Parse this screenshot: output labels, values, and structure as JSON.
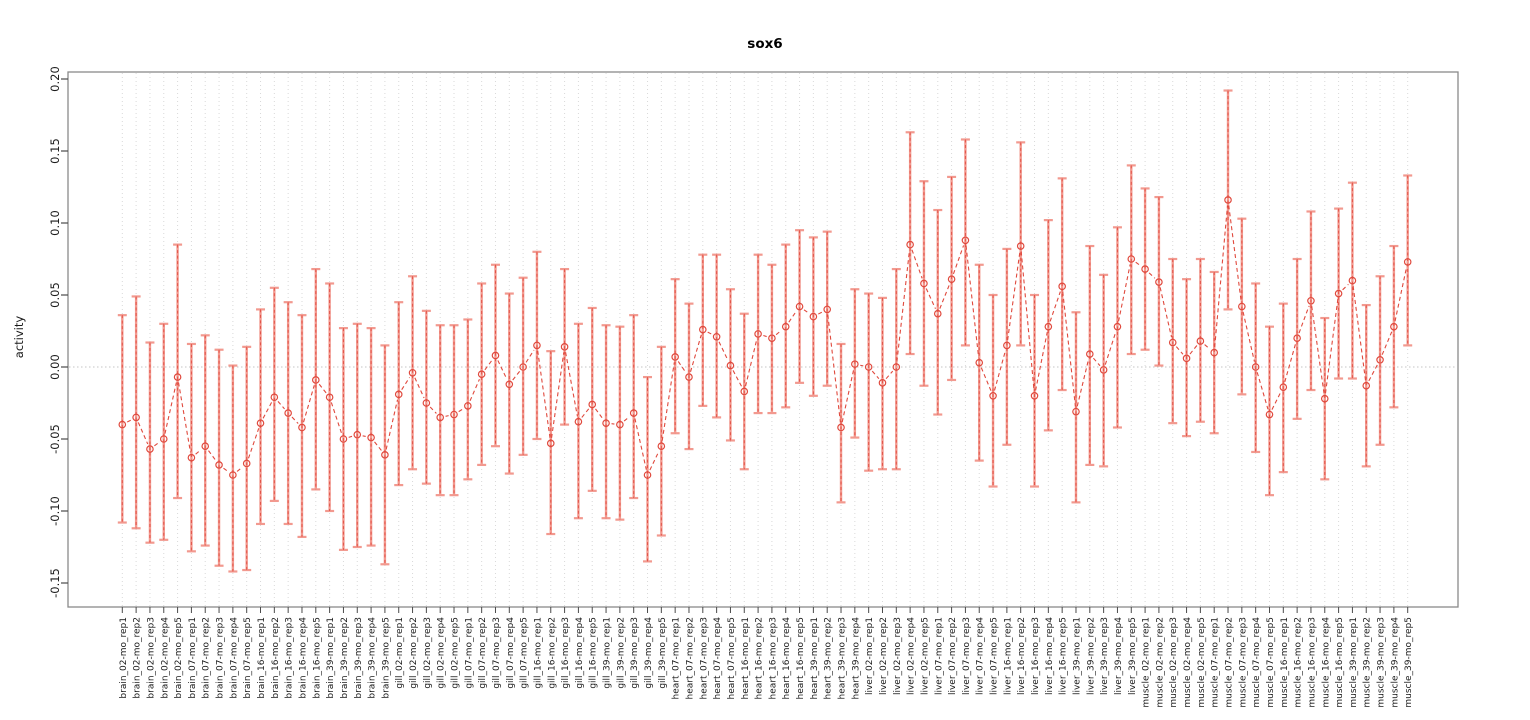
{
  "figure": {
    "title": "sox6",
    "ylabel": "activity",
    "colors": {
      "point": "#e0493d",
      "errorbar_light": "#f2998f",
      "grid": "#d9d9d9",
      "zero_line": "#c4c4c4",
      "box": "#8a8a8a",
      "tick": "#4a4a4a",
      "text": "#1a1a1a"
    }
  },
  "chart_data": {
    "type": "line",
    "title": "sox6",
    "xlabel": "",
    "ylabel": "activity",
    "ylim": [
      -0.17,
      0.205
    ],
    "yticks": [
      0.2,
      0.15,
      0.1,
      0.05,
      0.0,
      -0.05,
      -0.1,
      -0.15
    ],
    "ytick_labels": [
      "0.20",
      "0.15",
      "0.10",
      "0.05",
      "0.00",
      "-0.05",
      "-0.10",
      "-0.15"
    ],
    "grid": "light dotted vertical gridline at every category; dotted horizontal line at y=0",
    "legend_position": "none",
    "marker": "open-circle with dashed connecting segments and error bars",
    "categories": [
      "brain_02-mo_rep1",
      "brain_02-mo_rep2",
      "brain_02-mo_rep3",
      "brain_02-mo_rep4",
      "brain_02-mo_rep5",
      "brain_07-mo_rep1",
      "brain_07-mo_rep2",
      "brain_07-mo_rep3",
      "brain_07-mo_rep4",
      "brain_07-mo_rep5",
      "brain_16-mo_rep1",
      "brain_16-mo_rep2",
      "brain_16-mo_rep3",
      "brain_16-mo_rep4",
      "brain_16-mo_rep5",
      "brain_39-mo_rep1",
      "brain_39-mo_rep2",
      "brain_39-mo_rep3",
      "brain_39-mo_rep4",
      "brain_39-mo_rep5",
      "gill_02-mo_rep1",
      "gill_02-mo_rep2",
      "gill_02-mo_rep3",
      "gill_02-mo_rep4",
      "gill_02-mo_rep5",
      "gill_07-mo_rep1",
      "gill_07-mo_rep2",
      "gill_07-mo_rep3",
      "gill_07-mo_rep4",
      "gill_07-mo_rep5",
      "gill_16-mo_rep1",
      "gill_16-mo_rep2",
      "gill_16-mo_rep3",
      "gill_16-mo_rep4",
      "gill_16-mo_rep5",
      "gill_39-mo_rep1",
      "gill_39-mo_rep2",
      "gill_39-mo_rep3",
      "gill_39-mo_rep4",
      "gill_39-mo_rep5",
      "heart_07-mo_rep1",
      "heart_07-mo_rep2",
      "heart_07-mo_rep3",
      "heart_07-mo_rep4",
      "heart_07-mo_rep5",
      "heart_16-mo_rep1",
      "heart_16-mo_rep2",
      "heart_16-mo_rep3",
      "heart_16-mo_rep4",
      "heart_16-mo_rep5",
      "heart_39-mo_rep1",
      "heart_39-mo_rep2",
      "heart_39-mo_rep3",
      "heart_39-mo_rep4",
      "liver_02-mo_rep1",
      "liver_02-mo_rep2",
      "liver_02-mo_rep3",
      "liver_02-mo_rep4",
      "liver_02-mo_rep5",
      "liver_07-mo_rep1",
      "liver_07-mo_rep2",
      "liver_07-mo_rep3",
      "liver_07-mo_rep4",
      "liver_07-mo_rep5",
      "liver_16-mo_rep1",
      "liver_16-mo_rep2",
      "liver_16-mo_rep3",
      "liver_16-mo_rep4",
      "liver_16-mo_rep5",
      "liver_39-mo_rep1",
      "liver_39-mo_rep2",
      "liver_39-mo_rep3",
      "liver_39-mo_rep4",
      "liver_39-mo_rep5",
      "muscle_02-mo_rep1",
      "muscle_02-mo_rep2",
      "muscle_02-mo_rep3",
      "muscle_02-mo_rep4",
      "muscle_02-mo_rep5",
      "muscle_07-mo_rep1",
      "muscle_07-mo_rep2",
      "muscle_07-mo_rep3",
      "muscle_07-mo_rep4",
      "muscle_07-mo_rep5",
      "muscle_16-mo_rep1",
      "muscle_16-mo_rep2",
      "muscle_16-mo_rep3",
      "muscle_16-mo_rep4",
      "muscle_16-mo_rep5",
      "muscle_39-mo_rep1",
      "muscle_39-mo_rep2",
      "muscle_39-mo_rep3",
      "muscle_39-mo_rep4",
      "muscle_39-mo_rep5"
    ],
    "values": [
      -0.04,
      -0.035,
      -0.057,
      -0.05,
      -0.007,
      -0.063,
      -0.055,
      -0.068,
      -0.075,
      -0.067,
      -0.039,
      -0.021,
      -0.032,
      -0.042,
      -0.009,
      -0.021,
      -0.05,
      -0.047,
      -0.049,
      -0.061,
      -0.019,
      -0.004,
      -0.025,
      -0.035,
      -0.033,
      -0.027,
      -0.005,
      0.008,
      -0.012,
      0.0,
      0.015,
      -0.053,
      0.014,
      -0.038,
      -0.026,
      -0.039,
      -0.04,
      -0.032,
      -0.075,
      -0.055,
      0.007,
      -0.007,
      0.026,
      0.021,
      0.001,
      -0.017,
      0.023,
      0.02,
      0.028,
      0.042,
      0.035,
      0.04,
      -0.042,
      0.002,
      0.0,
      -0.011,
      0.0,
      0.085,
      0.058,
      0.037,
      0.061,
      0.088,
      0.003,
      -0.02,
      0.015,
      0.084,
      -0.02,
      0.028,
      0.056,
      -0.031,
      0.009,
      -0.002,
      0.028,
      0.075,
      0.068,
      0.059,
      0.017,
      0.006,
      0.018,
      0.01,
      0.116,
      0.042,
      0.0,
      -0.033,
      -0.014,
      0.02,
      0.046,
      -0.022,
      0.051,
      0.06,
      -0.013,
      0.005,
      0.028,
      0.073
    ],
    "err_high": [
      0.036,
      0.049,
      0.017,
      0.03,
      0.085,
      0.016,
      0.022,
      0.012,
      0.001,
      0.014,
      0.04,
      0.055,
      0.045,
      0.036,
      0.068,
      0.058,
      0.027,
      0.03,
      0.027,
      0.015,
      0.045,
      0.063,
      0.039,
      0.029,
      0.029,
      0.033,
      0.058,
      0.071,
      0.051,
      0.062,
      0.08,
      0.011,
      0.068,
      0.03,
      0.041,
      0.029,
      0.028,
      0.036,
      -0.007,
      0.014,
      0.061,
      0.044,
      0.078,
      0.078,
      0.054,
      0.037,
      0.078,
      0.071,
      0.085,
      0.095,
      0.09,
      0.094,
      0.016,
      0.054,
      0.051,
      0.048,
      0.068,
      0.163,
      0.129,
      0.109,
      0.132,
      0.158,
      0.071,
      0.05,
      0.082,
      0.156,
      0.05,
      0.102,
      0.131,
      0.038,
      0.084,
      0.064,
      0.097,
      0.14,
      0.124,
      0.118,
      0.075,
      0.061,
      0.075,
      0.066,
      0.192,
      0.103,
      0.058,
      0.028,
      0.044,
      0.075,
      0.108,
      0.034,
      0.11,
      0.128,
      0.043,
      0.063,
      0.084,
      0.133
    ],
    "err_low": [
      -0.108,
      -0.112,
      -0.122,
      -0.12,
      -0.091,
      -0.128,
      -0.124,
      -0.138,
      -0.142,
      -0.141,
      -0.109,
      -0.093,
      -0.109,
      -0.118,
      -0.085,
      -0.1,
      -0.127,
      -0.125,
      -0.124,
      -0.137,
      -0.082,
      -0.071,
      -0.081,
      -0.089,
      -0.089,
      -0.078,
      -0.068,
      -0.055,
      -0.074,
      -0.061,
      -0.05,
      -0.116,
      -0.04,
      -0.105,
      -0.086,
      -0.105,
      -0.106,
      -0.091,
      -0.135,
      -0.117,
      -0.046,
      -0.057,
      -0.027,
      -0.035,
      -0.051,
      -0.071,
      -0.032,
      -0.032,
      -0.028,
      -0.011,
      -0.02,
      -0.013,
      -0.094,
      -0.049,
      -0.072,
      -0.071,
      -0.071,
      0.009,
      -0.013,
      -0.033,
      -0.009,
      0.015,
      -0.065,
      -0.083,
      -0.054,
      0.015,
      -0.083,
      -0.044,
      -0.016,
      -0.094,
      -0.068,
      -0.069,
      -0.042,
      0.009,
      0.012,
      0.001,
      -0.039,
      -0.048,
      -0.038,
      -0.046,
      0.04,
      -0.019,
      -0.059,
      -0.089,
      -0.073,
      -0.036,
      -0.016,
      -0.078,
      -0.008,
      -0.008,
      -0.069,
      -0.054,
      -0.028,
      0.015
    ]
  }
}
